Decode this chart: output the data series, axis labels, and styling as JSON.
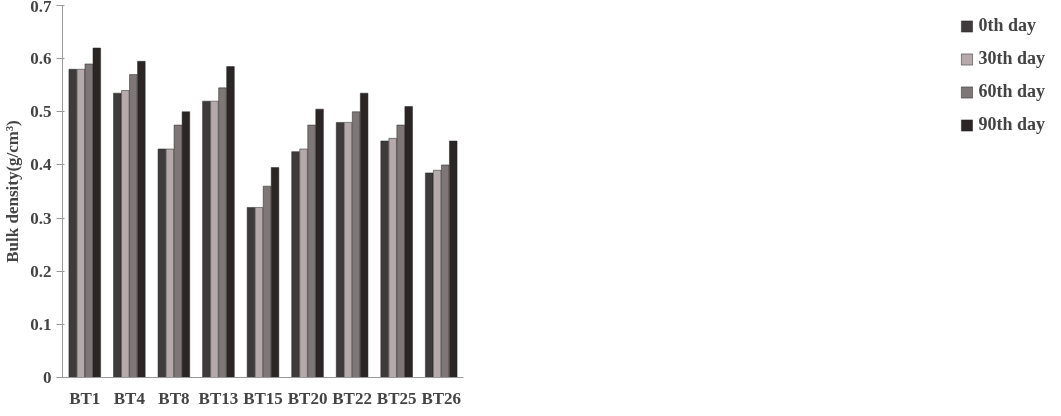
{
  "chart_data": {
    "type": "bar",
    "ylabel": "Bulk density(g/cm³)",
    "categories": [
      "BT1",
      "BT4",
      "BT8",
      "BT13",
      "BT15",
      "BT20",
      "BT22",
      "BT25",
      "BT26"
    ],
    "series": [
      {
        "name": "0th day",
        "color": "#3f3a3b",
        "values": [
          0.58,
          0.535,
          0.43,
          0.52,
          0.32,
          0.425,
          0.48,
          0.445,
          0.385
        ]
      },
      {
        "name": "30th day",
        "color": "#b5a9ab",
        "values": [
          0.58,
          0.54,
          0.43,
          0.52,
          0.32,
          0.43,
          0.48,
          0.45,
          0.39
        ]
      },
      {
        "name": "60th day",
        "color": "#7e7677",
        "values": [
          0.59,
          0.57,
          0.475,
          0.545,
          0.36,
          0.475,
          0.5,
          0.475,
          0.4
        ]
      },
      {
        "name": "90th day",
        "color": "#2b2526",
        "values": [
          0.62,
          0.595,
          0.5,
          0.585,
          0.395,
          0.505,
          0.535,
          0.51,
          0.445
        ]
      }
    ],
    "ylim": [
      0,
      0.7
    ],
    "yticks": [
      0,
      0.1,
      0.2,
      0.3,
      0.4,
      0.5,
      0.6,
      0.7
    ],
    "grid": false,
    "legend": "right"
  }
}
